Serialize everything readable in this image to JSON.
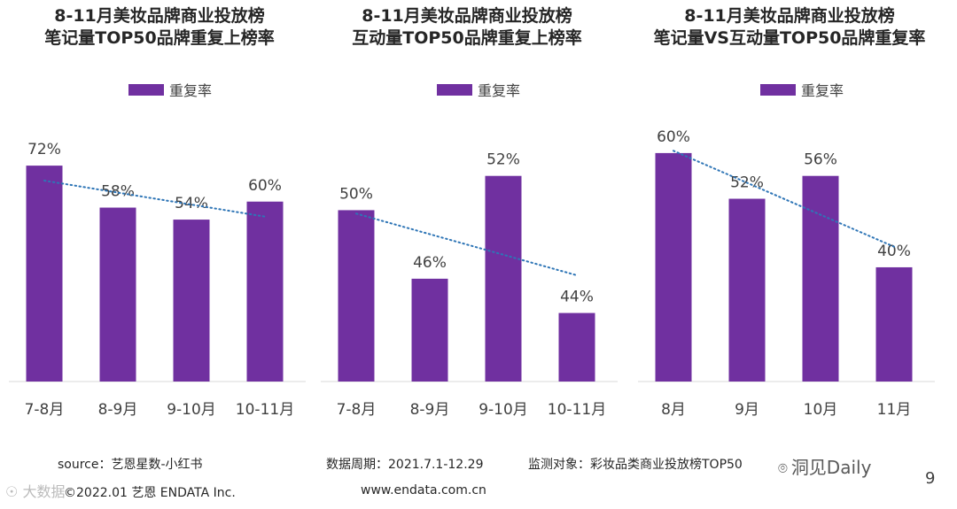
{
  "chart_data": [
    {
      "type": "bar",
      "title_lines": [
        "8-11月美妆品牌商业投放榜",
        "笔记量TOP50品牌重复上榜率"
      ],
      "legend": "重复率",
      "categories": [
        "7-8月",
        "8-9月",
        "9-10月",
        "10-11月"
      ],
      "values": [
        72,
        58,
        54,
        60
      ],
      "value_labels": [
        "72%",
        "58%",
        "54%",
        "60%"
      ],
      "trendline": "linear",
      "ylim": [
        0,
        80
      ]
    },
    {
      "type": "bar",
      "title_lines": [
        "8-11月美妆品牌商业投放榜",
        "互动量TOP50品牌重复上榜率"
      ],
      "legend": "重复率",
      "categories": [
        "7-8月",
        "8-9月",
        "9-10月",
        "10-11月"
      ],
      "values": [
        50,
        46,
        52,
        44
      ],
      "value_labels": [
        "50%",
        "46%",
        "52%",
        "44%"
      ],
      "trendline": "linear",
      "ylim": [
        40,
        54
      ]
    },
    {
      "type": "bar",
      "title_lines": [
        "8-11月美妆品牌商业投放榜",
        "笔记量VS互动量TOP50品牌重复率"
      ],
      "legend": "重复率",
      "categories": [
        "8月",
        "9月",
        "10月",
        "11月"
      ],
      "values": [
        60,
        52,
        56,
        40
      ],
      "value_labels": [
        "60%",
        "52%",
        "56%",
        "40%"
      ],
      "trendline": "linear",
      "ylim": [
        20,
        62
      ]
    }
  ],
  "colors": {
    "bar": "#7030a0",
    "trend": "#2e75b6",
    "axis": "#d9d9d9"
  },
  "footer": {
    "source": "source：艺恩星数-小红书",
    "period": "数据周期：2021.7.1-12.29",
    "target": "监测对象：彩妆品类商业投放榜TOP50",
    "copyright": "©2022.01 艺恩 ENDATA Inc.",
    "website": "www.endata.com.cn",
    "brand": "洞见Daily",
    "page": "9",
    "watermark": "大数据"
  }
}
